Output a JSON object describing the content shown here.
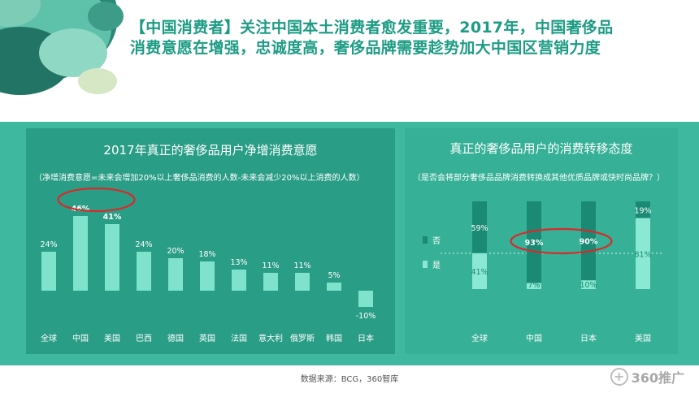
{
  "headline": {
    "line1": "【中国消费者】关注中国本土消费者愈发重要，2017年，中国奢侈品",
    "line2": "消费意愿在增强，忠诚度高，奢侈品牌需要趁势加大中国区营销力度"
  },
  "colors": {
    "headline": "#1d9c84",
    "band": "#3eb89e",
    "panel_left": "#2a9d86",
    "panel_right": "#36b096",
    "bar": "#7fe3cb",
    "dark_segment": "#1a8a74",
    "light_segment": "#8be8d2",
    "highlight": "#d62b2b"
  },
  "chart_data": [
    {
      "type": "bar",
      "title": "2017年真正的奢侈品用户净增消费意愿",
      "note": "（净增消费意愿=未来会增加20%以上奢侈品消费的人数-未来会减少20%以上消费的人数）",
      "categories": [
        "全球",
        "中国",
        "美国",
        "巴西",
        "德国",
        "英国",
        "法国",
        "意大利",
        "俄罗斯",
        "韩国",
        "日本"
      ],
      "values": [
        24,
        46,
        41,
        24,
        20,
        18,
        13,
        11,
        11,
        5,
        -10
      ],
      "value_labels": [
        "24%",
        "46%",
        "41%",
        "24%",
        "20%",
        "18%",
        "13%",
        "11%",
        "11%",
        "5%",
        "-10%"
      ],
      "highlighted": [
        "中国",
        "美国"
      ]
    },
    {
      "type": "bar",
      "stacked": true,
      "title": "真正的奢侈品用户的消费转移态度",
      "note": "（是否会将部分奢侈品品牌消费转换成其他优质品牌或快时尚品牌？）",
      "categories": [
        "全球",
        "中国",
        "日本",
        "美国"
      ],
      "series": [
        {
          "name": "否",
          "values": [
            59,
            93,
            90,
            19
          ],
          "labels": [
            "59%",
            "93%",
            "90%",
            "19%"
          ]
        },
        {
          "name": "是",
          "values": [
            41,
            7,
            10,
            81
          ],
          "labels": [
            "41%",
            "7%",
            "10%",
            "81%"
          ]
        }
      ],
      "ylim": [
        0,
        100
      ],
      "highlighted": [
        "中国",
        "日本"
      ]
    }
  ],
  "footer": {
    "source": "数据来源：BCG，360智库",
    "brand": "360推广",
    "brand_icon": "plus-circle-icon"
  }
}
